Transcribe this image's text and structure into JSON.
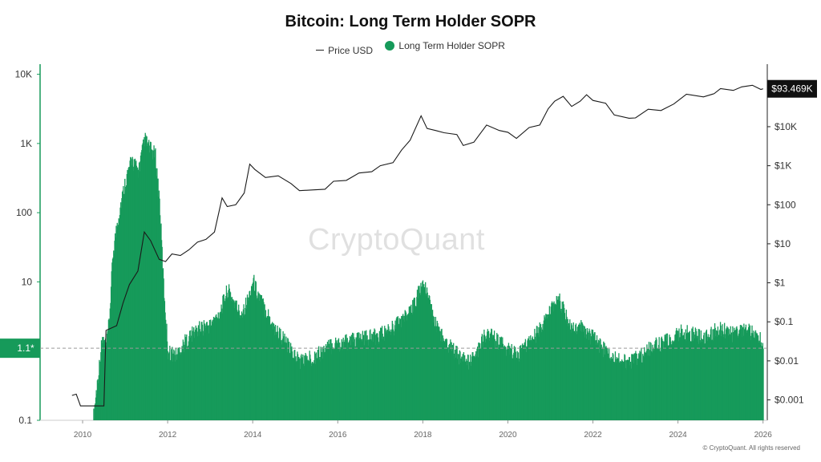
{
  "watermark": "CryptoQuant",
  "copyright": "© CryptoQuant. All rights reserved",
  "colors": {
    "sopr": "#169a5a",
    "price": "#1a1a1a",
    "grid": "#cccccc"
  },
  "chart_data": {
    "type": "bar",
    "title": "Bitcoin: Long Term Holder SOPR",
    "legend": {
      "placement": "top-center",
      "entries": [
        "Price USD",
        "Long Term Holder SOPR"
      ]
    },
    "x_ticks": [
      "2010",
      "2012",
      "2014",
      "2016",
      "2018",
      "2020",
      "2022",
      "2024",
      "2026"
    ],
    "x_range": [
      2009,
      2026.1
    ],
    "left_axis": {
      "scale": "log",
      "range": [
        0.1,
        14000
      ],
      "ticks": [
        "0.1",
        "1.1*",
        "10",
        "100",
        "1K",
        "10K"
      ]
    },
    "right_axis": {
      "scale": "log",
      "range": [
        0.0003,
        400000
      ],
      "ticks": [
        "$0.001",
        "$0.01",
        "$0.1",
        "$1",
        "$10",
        "$100",
        "$1K",
        "$10K"
      ]
    },
    "reference_line": {
      "value": 1.1,
      "label": "1.1*"
    },
    "current_price_label": "$93.469K",
    "series": [
      {
        "name": "Long Term Holder SOPR",
        "axis": "left",
        "points": [
          [
            2010.25,
            0.12
          ],
          [
            2010.45,
            1.5
          ],
          [
            2010.55,
            1.2
          ],
          [
            2010.62,
            3
          ],
          [
            2010.7,
            25
          ],
          [
            2010.8,
            70
          ],
          [
            2010.9,
            150
          ],
          [
            2011.0,
            300
          ],
          [
            2011.15,
            600
          ],
          [
            2011.3,
            400
          ],
          [
            2011.45,
            1200
          ],
          [
            2011.55,
            900
          ],
          [
            2011.7,
            700
          ],
          [
            2011.8,
            150
          ],
          [
            2011.9,
            8
          ],
          [
            2012.0,
            1.0
          ],
          [
            2012.2,
            0.9
          ],
          [
            2012.4,
            1.4
          ],
          [
            2012.6,
            1.9
          ],
          [
            2012.8,
            2.3
          ],
          [
            2013.0,
            2.4
          ],
          [
            2013.2,
            3.5
          ],
          [
            2013.4,
            8
          ],
          [
            2013.5,
            6
          ],
          [
            2013.7,
            3.5
          ],
          [
            2013.9,
            6
          ],
          [
            2014.0,
            11
          ],
          [
            2014.1,
            7
          ],
          [
            2014.3,
            4
          ],
          [
            2014.5,
            2.2
          ],
          [
            2014.7,
            1.6
          ],
          [
            2014.9,
            1.0
          ],
          [
            2015.1,
            0.75
          ],
          [
            2015.3,
            0.8
          ],
          [
            2015.5,
            0.9
          ],
          [
            2015.7,
            1.1
          ],
          [
            2015.9,
            1.3
          ],
          [
            2016.1,
            1.35
          ],
          [
            2016.3,
            1.45
          ],
          [
            2016.5,
            1.55
          ],
          [
            2016.7,
            1.6
          ],
          [
            2016.9,
            1.7
          ],
          [
            2017.1,
            1.9
          ],
          [
            2017.3,
            2.3
          ],
          [
            2017.5,
            3.0
          ],
          [
            2017.7,
            3.6
          ],
          [
            2017.85,
            6.5
          ],
          [
            2018.0,
            10
          ],
          [
            2018.15,
            5
          ],
          [
            2018.3,
            2.4
          ],
          [
            2018.5,
            1.5
          ],
          [
            2018.7,
            1.1
          ],
          [
            2018.9,
            0.8
          ],
          [
            2019.1,
            0.7
          ],
          [
            2019.3,
            1.1
          ],
          [
            2019.5,
            2.0
          ],
          [
            2019.7,
            1.5
          ],
          [
            2019.9,
            1.2
          ],
          [
            2020.2,
            0.9
          ],
          [
            2020.4,
            1.2
          ],
          [
            2020.6,
            1.6
          ],
          [
            2020.8,
            2.4
          ],
          [
            2021.0,
            4.0
          ],
          [
            2021.2,
            5.5
          ],
          [
            2021.35,
            3.5
          ],
          [
            2021.5,
            2.0
          ],
          [
            2021.7,
            2.3
          ],
          [
            2021.9,
            1.8
          ],
          [
            2022.1,
            1.4
          ],
          [
            2022.3,
            1.0
          ],
          [
            2022.5,
            0.8
          ],
          [
            2022.7,
            0.75
          ],
          [
            2022.9,
            0.72
          ],
          [
            2023.1,
            0.9
          ],
          [
            2023.3,
            1.1
          ],
          [
            2023.5,
            1.3
          ],
          [
            2023.7,
            1.4
          ],
          [
            2023.9,
            1.6
          ],
          [
            2024.1,
            2.0
          ],
          [
            2024.3,
            1.8
          ],
          [
            2024.5,
            1.7
          ],
          [
            2024.7,
            1.6
          ],
          [
            2024.9,
            2.2
          ],
          [
            2025.1,
            2.0
          ],
          [
            2025.3,
            1.8
          ],
          [
            2025.5,
            2.2
          ],
          [
            2025.7,
            1.9
          ],
          [
            2025.9,
            1.6
          ],
          [
            2026.0,
            1.4
          ]
        ]
      },
      {
        "name": "Price USD",
        "axis": "right",
        "points": [
          [
            2009.75,
            0.0013
          ],
          [
            2009.85,
            0.0014
          ],
          [
            2009.95,
            0.0007
          ],
          [
            2010.5,
            0.0007
          ],
          [
            2010.55,
            0.06
          ],
          [
            2010.8,
            0.08
          ],
          [
            2010.95,
            0.3
          ],
          [
            2011.1,
            0.9
          ],
          [
            2011.3,
            2
          ],
          [
            2011.45,
            20
          ],
          [
            2011.6,
            12
          ],
          [
            2011.8,
            4
          ],
          [
            2011.95,
            3.5
          ],
          [
            2012.1,
            5.5
          ],
          [
            2012.3,
            5
          ],
          [
            2012.5,
            7
          ],
          [
            2012.7,
            11
          ],
          [
            2012.9,
            13
          ],
          [
            2013.1,
            20
          ],
          [
            2013.28,
            150
          ],
          [
            2013.4,
            90
          ],
          [
            2013.6,
            100
          ],
          [
            2013.8,
            200
          ],
          [
            2013.93,
            1100
          ],
          [
            2014.05,
            800
          ],
          [
            2014.3,
            500
          ],
          [
            2014.6,
            550
          ],
          [
            2014.9,
            350
          ],
          [
            2015.1,
            230
          ],
          [
            2015.4,
            240
          ],
          [
            2015.7,
            250
          ],
          [
            2015.9,
            400
          ],
          [
            2016.2,
            420
          ],
          [
            2016.5,
            650
          ],
          [
            2016.8,
            700
          ],
          [
            2017.0,
            1000
          ],
          [
            2017.3,
            1200
          ],
          [
            2017.5,
            2500
          ],
          [
            2017.7,
            4500
          ],
          [
            2017.96,
            19000
          ],
          [
            2018.1,
            9000
          ],
          [
            2018.3,
            8000
          ],
          [
            2018.5,
            7000
          ],
          [
            2018.8,
            6300
          ],
          [
            2018.95,
            3300
          ],
          [
            2019.2,
            4000
          ],
          [
            2019.5,
            11000
          ],
          [
            2019.8,
            8000
          ],
          [
            2020.0,
            7200
          ],
          [
            2020.2,
            5000
          ],
          [
            2020.5,
            9500
          ],
          [
            2020.75,
            11000
          ],
          [
            2020.95,
            29000
          ],
          [
            2021.1,
            45000
          ],
          [
            2021.3,
            60000
          ],
          [
            2021.5,
            33000
          ],
          [
            2021.7,
            45000
          ],
          [
            2021.85,
            66000
          ],
          [
            2022.0,
            47000
          ],
          [
            2022.3,
            40000
          ],
          [
            2022.5,
            20000
          ],
          [
            2022.85,
            16500
          ],
          [
            2023.0,
            16800
          ],
          [
            2023.3,
            28000
          ],
          [
            2023.6,
            26000
          ],
          [
            2023.9,
            38000
          ],
          [
            2024.2,
            68000
          ],
          [
            2024.6,
            58000
          ],
          [
            2024.85,
            70000
          ],
          [
            2025.0,
            95000
          ],
          [
            2025.3,
            85000
          ],
          [
            2025.5,
            105000
          ],
          [
            2025.75,
            115000
          ],
          [
            2025.95,
            90000
          ],
          [
            2026.0,
            93469
          ]
        ]
      }
    ]
  }
}
